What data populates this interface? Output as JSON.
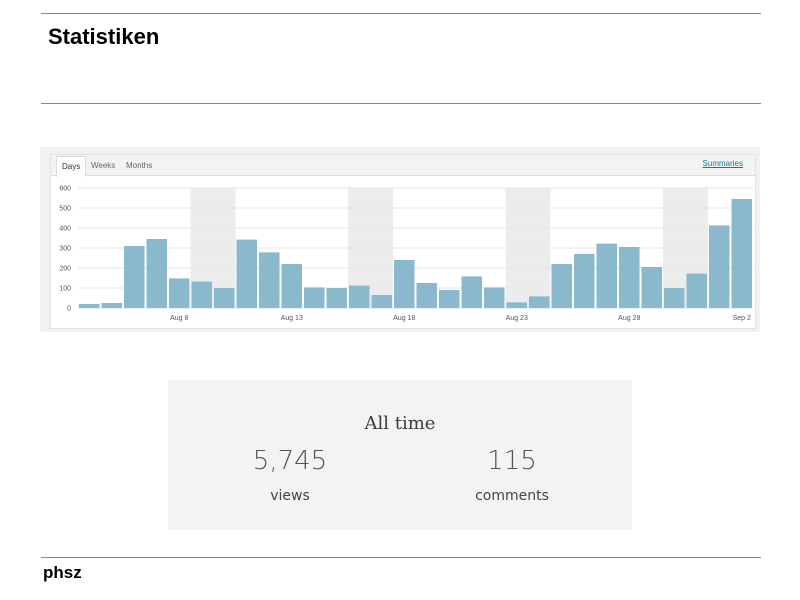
{
  "slide": {
    "title": "Statistiken",
    "footer": "phsz"
  },
  "stats_widget": {
    "tabs": [
      {
        "label": "Days",
        "active": true
      },
      {
        "label": "Weeks",
        "active": false
      },
      {
        "label": "Months",
        "active": false
      }
    ],
    "summaries_link": "Summaries",
    "accent_color": "#21759b",
    "bar_color": "#8ab8cd",
    "weekend_shade_color": "#ececec"
  },
  "chart_data": {
    "type": "bar",
    "categories": [
      "Aug 4",
      "Aug 5",
      "Aug 6",
      "Aug 7",
      "Aug 8",
      "Aug 9",
      "Aug 10",
      "Aug 11",
      "Aug 12",
      "Aug 13",
      "Aug 14",
      "Aug 15",
      "Aug 16",
      "Aug 17",
      "Aug 18",
      "Aug 19",
      "Aug 20",
      "Aug 21",
      "Aug 22",
      "Aug 23",
      "Aug 24",
      "Aug 25",
      "Aug 26",
      "Aug 27",
      "Aug 28",
      "Aug 29",
      "Aug 30",
      "Aug 31",
      "Sep 1",
      "Sep 2"
    ],
    "values": [
      20,
      25,
      310,
      345,
      148,
      132,
      100,
      342,
      278,
      220,
      103,
      100,
      112,
      65,
      240,
      125,
      90,
      158,
      103,
      28,
      58,
      220,
      270,
      322,
      305,
      205,
      100,
      172,
      413,
      545
    ],
    "shaded_days": [
      "Aug 9",
      "Aug 10",
      "Aug 16",
      "Aug 17",
      "Aug 23",
      "Aug 24",
      "Aug 30",
      "Aug 31"
    ],
    "x_tick_labels": [
      "Aug 8",
      "Aug 13",
      "Aug 18",
      "Aug 23",
      "Aug 28",
      "Sep 2"
    ],
    "y_ticks": [
      0,
      100,
      200,
      300,
      400,
      500,
      600
    ],
    "ylim": [
      0,
      600
    ],
    "grid": true,
    "title": "",
    "xlabel": "",
    "ylabel": ""
  },
  "all_time": {
    "title": "All time",
    "views_value": "5,745",
    "views_label": "views",
    "comments_value": "115",
    "comments_label": "comments"
  }
}
